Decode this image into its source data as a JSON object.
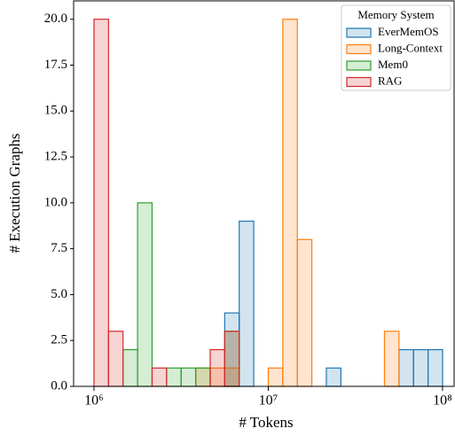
{
  "chart_data": {
    "type": "histogram",
    "xlabel": "# Tokens",
    "ylabel": "# Execution Graphs",
    "log_x": true,
    "bins": [
      1000000,
      1211528,
      1467799,
      1778279,
      2154435,
      2610157,
      3162278,
      3831187,
      4641589,
      5623413,
      6812921,
      8254042,
      10000000,
      12115277,
      14677993,
      17782794,
      21544347,
      26101572,
      31622777,
      38311868,
      46415888,
      56234133,
      68129207,
      82540419,
      100000000
    ],
    "series": [
      {
        "name": "EverMemOS",
        "color": "#1f77b4",
        "values": [
          0,
          0,
          0,
          0,
          0,
          0,
          0,
          0,
          0,
          4,
          9,
          0,
          0,
          0,
          0,
          0,
          1,
          0,
          0,
          0,
          0,
          2,
          2,
          2
        ]
      },
      {
        "name": "Long-Context",
        "color": "#ff7f0e",
        "values": [
          0,
          0,
          0,
          0,
          0,
          0,
          0,
          1,
          1,
          1,
          0,
          0,
          1,
          20,
          8,
          0,
          0,
          0,
          0,
          0,
          3,
          0,
          0,
          0
        ]
      },
      {
        "name": "Mem0",
        "color": "#2ca02c",
        "values": [
          0,
          0,
          2,
          10,
          0,
          1,
          1,
          1,
          0,
          3,
          0,
          0,
          0,
          0,
          0,
          0,
          0,
          0,
          0,
          0,
          0,
          0,
          0,
          0
        ]
      },
      {
        "name": "RAG",
        "color": "#d62728",
        "values": [
          20,
          3,
          0,
          0,
          1,
          0,
          0,
          0,
          2,
          3,
          0,
          0,
          0,
          0,
          0,
          0,
          0,
          0,
          0,
          0,
          0,
          0,
          0,
          0
        ]
      }
    ],
    "legend_title": "Memory System",
    "legend": "upper right",
    "xlim": [
      764000,
      116500000
    ],
    "xticks": [
      {
        "value": 1000000,
        "label": "10⁶"
      },
      {
        "value": 10000000,
        "label": "10⁷"
      },
      {
        "value": 100000000,
        "label": "10⁸"
      }
    ],
    "ylim": [
      0,
      21
    ],
    "yticks": [
      {
        "value": 0,
        "label": "0.0"
      },
      {
        "value": 2.5,
        "label": "2.5"
      },
      {
        "value": 5,
        "label": "5.0"
      },
      {
        "value": 7.5,
        "label": "7.5"
      },
      {
        "value": 10,
        "label": "10.0"
      },
      {
        "value": 12.5,
        "label": "12.5"
      },
      {
        "value": 15,
        "label": "15.0"
      },
      {
        "value": 17.5,
        "label": "17.5"
      },
      {
        "value": 20,
        "label": "20.0"
      }
    ]
  }
}
